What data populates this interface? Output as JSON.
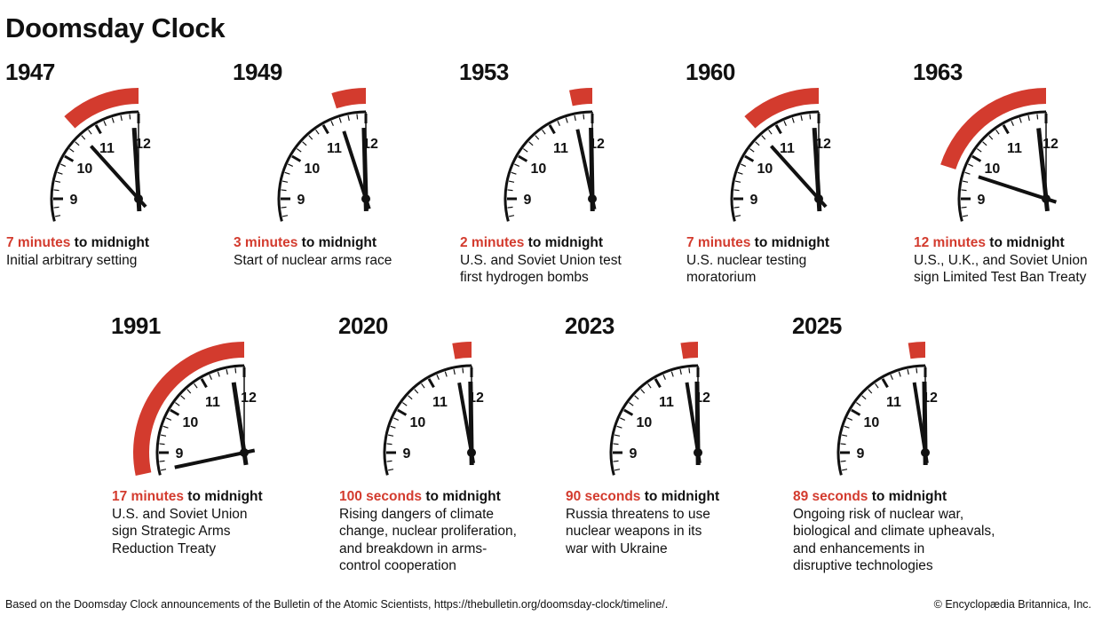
{
  "title": "Doomsday Clock",
  "colors": {
    "accent": "#d33b2e",
    "ink": "#111111"
  },
  "connector": "to midnight",
  "panels": [
    {
      "year": "1947",
      "amount": "7 minutes",
      "minutes_to_midnight": 7,
      "description": [
        "Initial arbitrary setting"
      ]
    },
    {
      "year": "1949",
      "amount": "3 minutes",
      "minutes_to_midnight": 3,
      "description": [
        "Start of nuclear arms race"
      ]
    },
    {
      "year": "1953",
      "amount": "2 minutes",
      "minutes_to_midnight": 2,
      "description": [
        "U.S. and Soviet Union test",
        "first hydrogen bombs"
      ]
    },
    {
      "year": "1960",
      "amount": "7 minutes",
      "minutes_to_midnight": 7,
      "description": [
        "U.S. nuclear testing",
        "moratorium"
      ]
    },
    {
      "year": "1963",
      "amount": "12 minutes",
      "minutes_to_midnight": 12,
      "description": [
        "U.S., U.K., and Soviet Union",
        "sign Limited Test Ban Treaty"
      ]
    },
    {
      "year": "1991",
      "amount": "17 minutes",
      "minutes_to_midnight": 17,
      "description": [
        "U.S. and Soviet Union",
        "sign Strategic Arms",
        "Reduction Treaty"
      ]
    },
    {
      "year": "2020",
      "amount": "100 seconds",
      "minutes_to_midnight": 1.6667,
      "description": [
        "Rising dangers of climate",
        "change, nuclear proliferation,",
        "and breakdown in arms-",
        "control cooperation"
      ]
    },
    {
      "year": "2023",
      "amount": "90 seconds",
      "minutes_to_midnight": 1.5,
      "description": [
        "Russia threatens to use",
        "nuclear weapons in its",
        "war with Ukraine"
      ]
    },
    {
      "year": "2025",
      "amount": "89 seconds",
      "minutes_to_midnight": 1.4833,
      "description": [
        "Ongoing risk of nuclear war,",
        "biological and climate upheavals,",
        "and enhancements in",
        "disruptive technologies"
      ]
    }
  ],
  "clock_numerals": [
    "9",
    "10",
    "11",
    "12"
  ],
  "footer": {
    "source": "Based on the Doomsday Clock announcements of the Bulletin of the Atomic Scientists, https://thebulletin.org/doomsday-clock/timeline/.",
    "credit": "© Encyclopædia Britannica, Inc."
  }
}
